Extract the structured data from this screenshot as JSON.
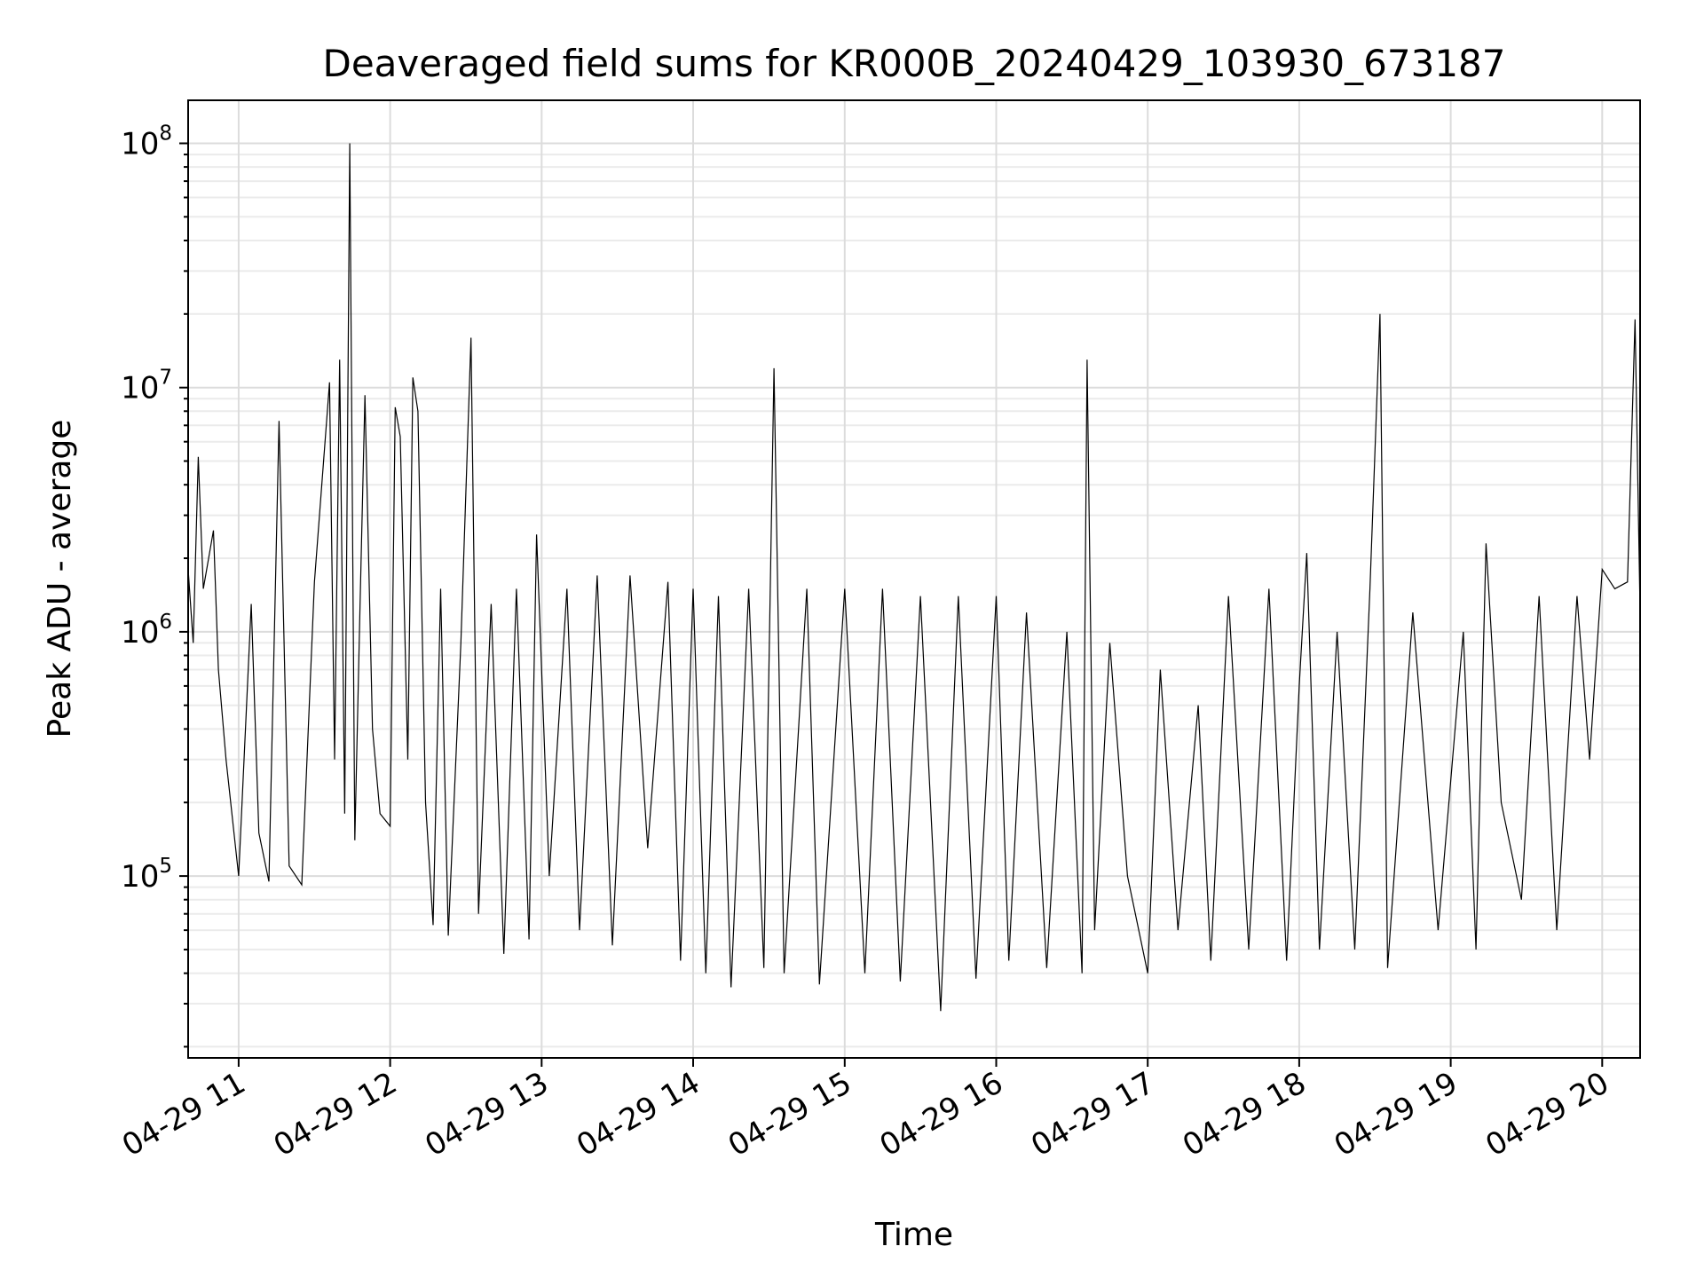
{
  "chart_data": {
    "type": "line",
    "title": "Deaveraged field sums for KR000B_20240429_103930_673187",
    "xlabel": "Time",
    "ylabel": "Peak ADU - average",
    "y_scale": "log",
    "ylim": [
      18000,
      150000000
    ],
    "xlim": [
      "2024-04-29T10:40",
      "2024-04-29T20:15"
    ],
    "grid": true,
    "line_color": "#000000",
    "x_ticks": [
      {
        "value": "2024-04-29T11:00",
        "label": "04-29 11"
      },
      {
        "value": "2024-04-29T12:00",
        "label": "04-29 12"
      },
      {
        "value": "2024-04-29T13:00",
        "label": "04-29 13"
      },
      {
        "value": "2024-04-29T14:00",
        "label": "04-29 14"
      },
      {
        "value": "2024-04-29T15:00",
        "label": "04-29 15"
      },
      {
        "value": "2024-04-29T16:00",
        "label": "04-29 16"
      },
      {
        "value": "2024-04-29T17:00",
        "label": "04-29 17"
      },
      {
        "value": "2024-04-29T18:00",
        "label": "04-29 18"
      },
      {
        "value": "2024-04-29T19:00",
        "label": "04-29 19"
      },
      {
        "value": "2024-04-29T20:00",
        "label": "04-29 20"
      }
    ],
    "y_ticks": [
      {
        "value": 100000,
        "base": "10",
        "exp": "5"
      },
      {
        "value": 1000000,
        "base": "10",
        "exp": "6"
      },
      {
        "value": 10000000,
        "base": "10",
        "exp": "7"
      },
      {
        "value": 100000000,
        "base": "10",
        "exp": "8"
      }
    ],
    "series": [
      {
        "points": [
          [
            "2024-04-29T10:40",
            1800000
          ],
          [
            "2024-04-29T10:42",
            900000
          ],
          [
            "2024-04-29T10:44",
            5200000
          ],
          [
            "2024-04-29T10:46",
            1500000
          ],
          [
            "2024-04-29T10:50",
            2600000
          ],
          [
            "2024-04-29T10:52",
            700000
          ],
          [
            "2024-04-29T10:55",
            300000
          ],
          [
            "2024-04-29T11:00",
            100000
          ],
          [
            "2024-04-29T11:05",
            1300000
          ],
          [
            "2024-04-29T11:08",
            150000
          ],
          [
            "2024-04-29T11:12",
            95000
          ],
          [
            "2024-04-29T11:16",
            7300000
          ],
          [
            "2024-04-29T11:20",
            110000
          ],
          [
            "2024-04-29T11:25",
            92000
          ],
          [
            "2024-04-29T11:30",
            1600000
          ],
          [
            "2024-04-29T11:36",
            10500000
          ],
          [
            "2024-04-29T11:38",
            300000
          ],
          [
            "2024-04-29T11:40",
            13000000
          ],
          [
            "2024-04-29T11:42",
            180000
          ],
          [
            "2024-04-29T11:44",
            100000000
          ],
          [
            "2024-04-29T11:46",
            140000
          ],
          [
            "2024-04-29T11:48",
            1200000
          ],
          [
            "2024-04-29T11:50",
            9300000
          ],
          [
            "2024-04-29T11:53",
            400000
          ],
          [
            "2024-04-29T11:56",
            180000
          ],
          [
            "2024-04-29T12:00",
            160000
          ],
          [
            "2024-04-29T12:02",
            8300000
          ],
          [
            "2024-04-29T12:04",
            6300000
          ],
          [
            "2024-04-29T12:07",
            300000
          ],
          [
            "2024-04-29T12:09",
            11000000
          ],
          [
            "2024-04-29T12:11",
            8000000
          ],
          [
            "2024-04-29T12:14",
            200000
          ],
          [
            "2024-04-29T12:17",
            63000
          ],
          [
            "2024-04-29T12:20",
            1500000
          ],
          [
            "2024-04-29T12:23",
            57000
          ],
          [
            "2024-04-29T12:28",
            900000
          ],
          [
            "2024-04-29T12:32",
            16000000
          ],
          [
            "2024-04-29T12:35",
            70000
          ],
          [
            "2024-04-29T12:40",
            1300000
          ],
          [
            "2024-04-29T12:45",
            48000
          ],
          [
            "2024-04-29T12:50",
            1500000
          ],
          [
            "2024-04-29T12:55",
            55000
          ],
          [
            "2024-04-29T12:58",
            2500000
          ],
          [
            "2024-04-29T13:03",
            100000
          ],
          [
            "2024-04-29T13:10",
            1500000
          ],
          [
            "2024-04-29T13:15",
            60000
          ],
          [
            "2024-04-29T13:22",
            1700000
          ],
          [
            "2024-04-29T13:28",
            52000
          ],
          [
            "2024-04-29T13:35",
            1700000
          ],
          [
            "2024-04-29T13:42",
            130000
          ],
          [
            "2024-04-29T13:50",
            1600000
          ],
          [
            "2024-04-29T13:55",
            45000
          ],
          [
            "2024-04-29T14:00",
            1500000
          ],
          [
            "2024-04-29T14:05",
            40000
          ],
          [
            "2024-04-29T14:10",
            1400000
          ],
          [
            "2024-04-29T14:15",
            35000
          ],
          [
            "2024-04-29T14:22",
            1500000
          ],
          [
            "2024-04-29T14:28",
            42000
          ],
          [
            "2024-04-29T14:32",
            12000000
          ],
          [
            "2024-04-29T14:36",
            40000
          ],
          [
            "2024-04-29T14:45",
            1500000
          ],
          [
            "2024-04-29T14:50",
            36000
          ],
          [
            "2024-04-29T15:00",
            1500000
          ],
          [
            "2024-04-29T15:08",
            40000
          ],
          [
            "2024-04-29T15:15",
            1500000
          ],
          [
            "2024-04-29T15:22",
            37000
          ],
          [
            "2024-04-29T15:30",
            1400000
          ],
          [
            "2024-04-29T15:38",
            28000
          ],
          [
            "2024-04-29T15:45",
            1400000
          ],
          [
            "2024-04-29T15:52",
            38000
          ],
          [
            "2024-04-29T16:00",
            1400000
          ],
          [
            "2024-04-29T16:05",
            45000
          ],
          [
            "2024-04-29T16:12",
            1200000
          ],
          [
            "2024-04-29T16:20",
            42000
          ],
          [
            "2024-04-29T16:28",
            1000000
          ],
          [
            "2024-04-29T16:34",
            40000
          ],
          [
            "2024-04-29T16:36",
            13000000
          ],
          [
            "2024-04-29T16:39",
            60000
          ],
          [
            "2024-04-29T16:45",
            900000
          ],
          [
            "2024-04-29T16:52",
            100000
          ],
          [
            "2024-04-29T17:00",
            40000
          ],
          [
            "2024-04-29T17:05",
            700000
          ],
          [
            "2024-04-29T17:12",
            60000
          ],
          [
            "2024-04-29T17:20",
            500000
          ],
          [
            "2024-04-29T17:25",
            45000
          ],
          [
            "2024-04-29T17:32",
            1400000
          ],
          [
            "2024-04-29T17:40",
            50000
          ],
          [
            "2024-04-29T17:48",
            1500000
          ],
          [
            "2024-04-29T17:55",
            45000
          ],
          [
            "2024-04-29T18:00",
            600000
          ],
          [
            "2024-04-29T18:03",
            2100000
          ],
          [
            "2024-04-29T18:08",
            50000
          ],
          [
            "2024-04-29T18:15",
            1000000
          ],
          [
            "2024-04-29T18:22",
            50000
          ],
          [
            "2024-04-29T18:28",
            1500000
          ],
          [
            "2024-04-29T18:32",
            20000000
          ],
          [
            "2024-04-29T18:35",
            42000
          ],
          [
            "2024-04-29T18:45",
            1200000
          ],
          [
            "2024-04-29T18:55",
            60000
          ],
          [
            "2024-04-29T19:05",
            1000000
          ],
          [
            "2024-04-29T19:10",
            50000
          ],
          [
            "2024-04-29T19:14",
            2300000
          ],
          [
            "2024-04-29T19:20",
            200000
          ],
          [
            "2024-04-29T19:28",
            80000
          ],
          [
            "2024-04-29T19:35",
            1400000
          ],
          [
            "2024-04-29T19:42",
            60000
          ],
          [
            "2024-04-29T19:50",
            1400000
          ],
          [
            "2024-04-29T19:55",
            300000
          ],
          [
            "2024-04-29T20:00",
            1800000
          ],
          [
            "2024-04-29T20:05",
            1500000
          ],
          [
            "2024-04-29T20:10",
            1600000
          ],
          [
            "2024-04-29T20:13",
            19000000
          ],
          [
            "2024-04-29T20:15",
            1200000
          ]
        ]
      }
    ]
  }
}
